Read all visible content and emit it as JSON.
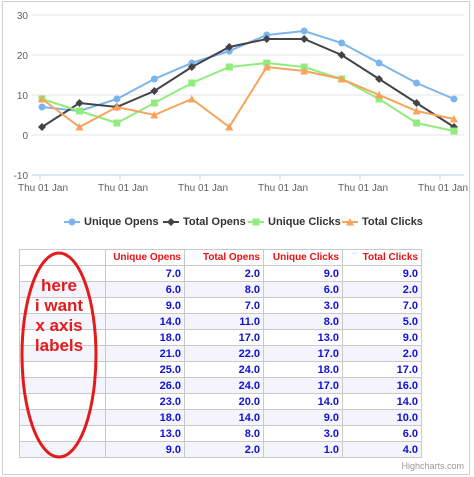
{
  "chart_data": {
    "type": "line",
    "x": [
      "Thu 01 Jan",
      "",
      "Thu 01 Jan",
      "",
      "Thu 01 Jan",
      "",
      "Thu 01 Jan",
      "",
      "Thu 01 Jan",
      "",
      "Thu 01 Jan",
      ""
    ],
    "xticks": [
      "Thu 01 Jan",
      "Thu 01 Jan",
      "Thu 01 Jan",
      "Thu 01 Jan",
      "Thu 01 Jan",
      "Thu 01 Jan"
    ],
    "ylim": [
      -10,
      30
    ],
    "yticks": [
      -10,
      0,
      10,
      20,
      30
    ],
    "grid": true,
    "legend_position": "bottom",
    "series": [
      {
        "name": "Unique Opens",
        "color": "#7cb5ec",
        "marker": "circle",
        "values": [
          7,
          6,
          9,
          14,
          18,
          21,
          25,
          26,
          23,
          18,
          13,
          9
        ]
      },
      {
        "name": "Total Opens",
        "color": "#434348",
        "marker": "diamond",
        "values": [
          2,
          8,
          7,
          11,
          17,
          22,
          24,
          24,
          20,
          14,
          8,
          2
        ]
      },
      {
        "name": "Unique Clicks",
        "color": "#90ed7d",
        "marker": "square",
        "values": [
          9,
          6,
          3,
          8,
          13,
          17,
          18,
          17,
          14,
          9,
          3,
          1
        ]
      },
      {
        "name": "Total Clicks",
        "color": "#f7a35c",
        "marker": "triangle",
        "values": [
          9,
          2,
          7,
          5,
          9,
          2,
          17,
          16,
          14,
          10,
          6,
          4
        ]
      }
    ]
  },
  "table": {
    "headers": [
      "",
      "Unique Opens",
      "Total Opens",
      "Unique Clicks",
      "Total Clicks"
    ],
    "rows": [
      [
        "7.0",
        "2.0",
        "9.0",
        "9.0"
      ],
      [
        "6.0",
        "8.0",
        "6.0",
        "2.0"
      ],
      [
        "9.0",
        "7.0",
        "3.0",
        "7.0"
      ],
      [
        "14.0",
        "11.0",
        "8.0",
        "5.0"
      ],
      [
        "18.0",
        "17.0",
        "13.0",
        "9.0"
      ],
      [
        "21.0",
        "22.0",
        "17.0",
        "2.0"
      ],
      [
        "25.0",
        "24.0",
        "18.0",
        "17.0"
      ],
      [
        "26.0",
        "24.0",
        "17.0",
        "16.0"
      ],
      [
        "23.0",
        "20.0",
        "14.0",
        "14.0"
      ],
      [
        "18.0",
        "14.0",
        "9.0",
        "10.0"
      ],
      [
        "13.0",
        "8.0",
        "3.0",
        "6.0"
      ],
      [
        "9.0",
        "2.0",
        "1.0",
        "4.0"
      ]
    ]
  },
  "annotation": {
    "lines": [
      "here",
      "i want",
      "x axis",
      "labels"
    ],
    "color": "#e31b1b"
  },
  "credit": "Highcharts.com"
}
